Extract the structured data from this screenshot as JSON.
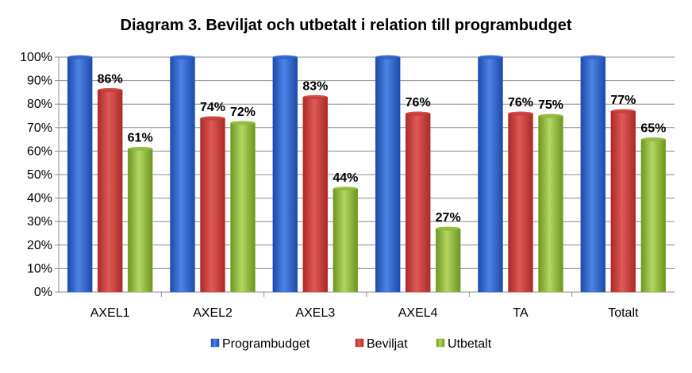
{
  "chart_data": {
    "type": "bar",
    "title": "Diagram 3. Beviljat och utbetalt i relation till programbudget",
    "xlabel": "",
    "ylabel": "",
    "ylim": [
      0,
      100
    ],
    "yticks": [
      "0%",
      "10%",
      "20%",
      "30%",
      "40%",
      "50%",
      "60%",
      "70%",
      "80%",
      "90%",
      "100%"
    ],
    "categories": [
      "AXEL1",
      "AXEL2",
      "AXEL3",
      "AXEL4",
      "TA",
      "Totalt"
    ],
    "grid": true,
    "legend_position": "bottom",
    "series": [
      {
        "name": "Programbudget",
        "color": "#2e62c9",
        "values": [
          100,
          100,
          100,
          100,
          100,
          100
        ],
        "labels": [
          "",
          "",
          "",
          "",
          "",
          ""
        ]
      },
      {
        "name": "Beviljat",
        "color": "#cc3a36",
        "values": [
          86,
          74,
          83,
          76,
          76,
          77
        ],
        "labels": [
          "86%",
          "74%",
          "83%",
          "76%",
          "76%",
          "77%"
        ]
      },
      {
        "name": "Utbetalt",
        "color": "#8fb83a",
        "values": [
          61,
          72,
          44,
          27,
          75,
          65
        ],
        "labels": [
          "61%",
          "72%",
          "44%",
          "27%",
          "75%",
          "65%"
        ]
      }
    ]
  }
}
